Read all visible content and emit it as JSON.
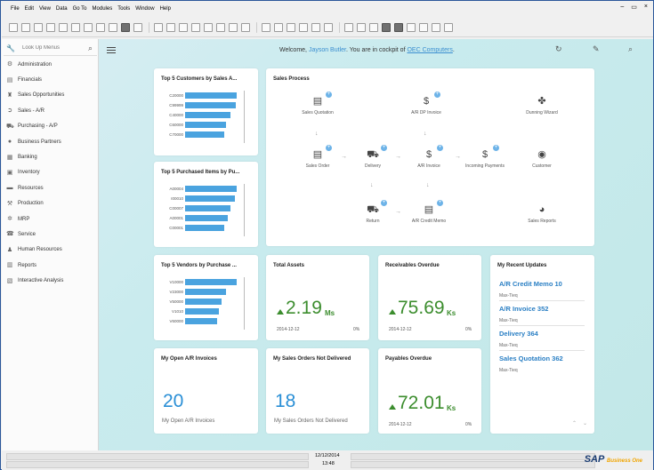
{
  "menu": [
    "File",
    "Edit",
    "View",
    "Data",
    "Go To",
    "Modules",
    "Tools",
    "Window",
    "Help"
  ],
  "window_controls": [
    "–",
    "▭",
    "×"
  ],
  "search": {
    "placeholder": "Look Up Menus"
  },
  "nav": [
    {
      "label": "Administration",
      "icon": "gear-icon"
    },
    {
      "label": "Financials",
      "icon": "chart-icon"
    },
    {
      "label": "Sales Opportunities",
      "icon": "opportunity-icon"
    },
    {
      "label": "Sales - A/R",
      "icon": "sales-icon"
    },
    {
      "label": "Purchasing - A/P",
      "icon": "cart-icon"
    },
    {
      "label": "Business Partners",
      "icon": "person-icon"
    },
    {
      "label": "Banking",
      "icon": "bank-icon"
    },
    {
      "label": "Inventory",
      "icon": "box-icon"
    },
    {
      "label": "Resources",
      "icon": "resources-icon"
    },
    {
      "label": "Production",
      "icon": "production-icon"
    },
    {
      "label": "MRP",
      "icon": "mrp-icon"
    },
    {
      "label": "Service",
      "icon": "service-icon"
    },
    {
      "label": "Human Resources",
      "icon": "people-icon"
    },
    {
      "label": "Reports",
      "icon": "reports-icon"
    },
    {
      "label": "Interactive Analysis",
      "icon": "analysis-icon"
    }
  ],
  "header": {
    "welcome_prefix": "Welcome, ",
    "user": "Jayson Butler",
    "mid": ". You are in cockpit of ",
    "company": "OEC Computers",
    "suffix": "."
  },
  "tiles": {
    "customers": {
      "title": "Top 5 Customers by Sales A...",
      "labels": [
        "C20000",
        "C99999",
        "C40000",
        "C60000",
        "C70000"
      ],
      "values": [
        1.0,
        0.98,
        0.88,
        0.8,
        0.75
      ]
    },
    "purchased": {
      "title": "Top 5 Purchased Items by Pu...",
      "labels": [
        "A00004",
        "I00010",
        "C00007",
        "A00001",
        "C00001"
      ],
      "values": [
        1.0,
        0.96,
        0.88,
        0.82,
        0.75
      ]
    },
    "vendors": {
      "title": "Top 5 Vendors by Purchase ...",
      "labels": [
        "V10000",
        "V23000",
        "V50000",
        "V1010",
        "V60000"
      ],
      "values": [
        1.0,
        0.8,
        0.7,
        0.66,
        0.62
      ]
    },
    "process": {
      "title": "Sales Process",
      "sales_quotation": "Sales Quotation",
      "ar_dp_invoice": "A/R DP Invoice",
      "dunning_wizard": "Dunning Wizard",
      "sales_order": "Sales Order",
      "delivery": "Delivery",
      "ar_invoice": "A/R Invoice",
      "incoming_payments": "Incoming Payments",
      "customer": "Customer",
      "return": "Return",
      "ar_credit_memo": "A/R Credit Memo",
      "sales_reports": "Sales Reports"
    },
    "total_assets": {
      "title": "Total Assets",
      "value": "2.19",
      "unit": "Ms",
      "date": "2014-12-12",
      "pct": "0%"
    },
    "receivables": {
      "title": "Receivables Overdue",
      "value": "75.69",
      "unit": "Ks",
      "date": "2014-12-12",
      "pct": "0%"
    },
    "payables": {
      "title": "Payables Overdue",
      "value": "72.01",
      "unit": "Ks",
      "date": "2014-12-12",
      "pct": "0%"
    },
    "open_ar": {
      "title": "My Open A/R Invoices",
      "value": "20",
      "caption": "My Open A/R Invoices"
    },
    "sales_orders": {
      "title": "My Sales Orders Not Delivered",
      "value": "18",
      "caption": "My Sales Orders Not Delivered"
    },
    "updates": {
      "title": "My Recent Updates",
      "items": [
        {
          "title": "A/R Credit Memo 10",
          "user": "Max-Tieq"
        },
        {
          "title": "A/R Invoice 352",
          "user": "Max-Tieq"
        },
        {
          "title": "Delivery 364",
          "user": "Max-Tieq"
        },
        {
          "title": "Sales Quotation 362",
          "user": "Max-Tieq"
        }
      ]
    }
  },
  "status": {
    "date": "12/12/2014",
    "time": "13:48",
    "logo": "SAP",
    "logo_sub": "Business One"
  },
  "colors": {
    "bar": "#4aa3df",
    "kpi_green": "#3c8d2e",
    "link": "#2a7fc4",
    "title_bar": "#2b579a"
  }
}
